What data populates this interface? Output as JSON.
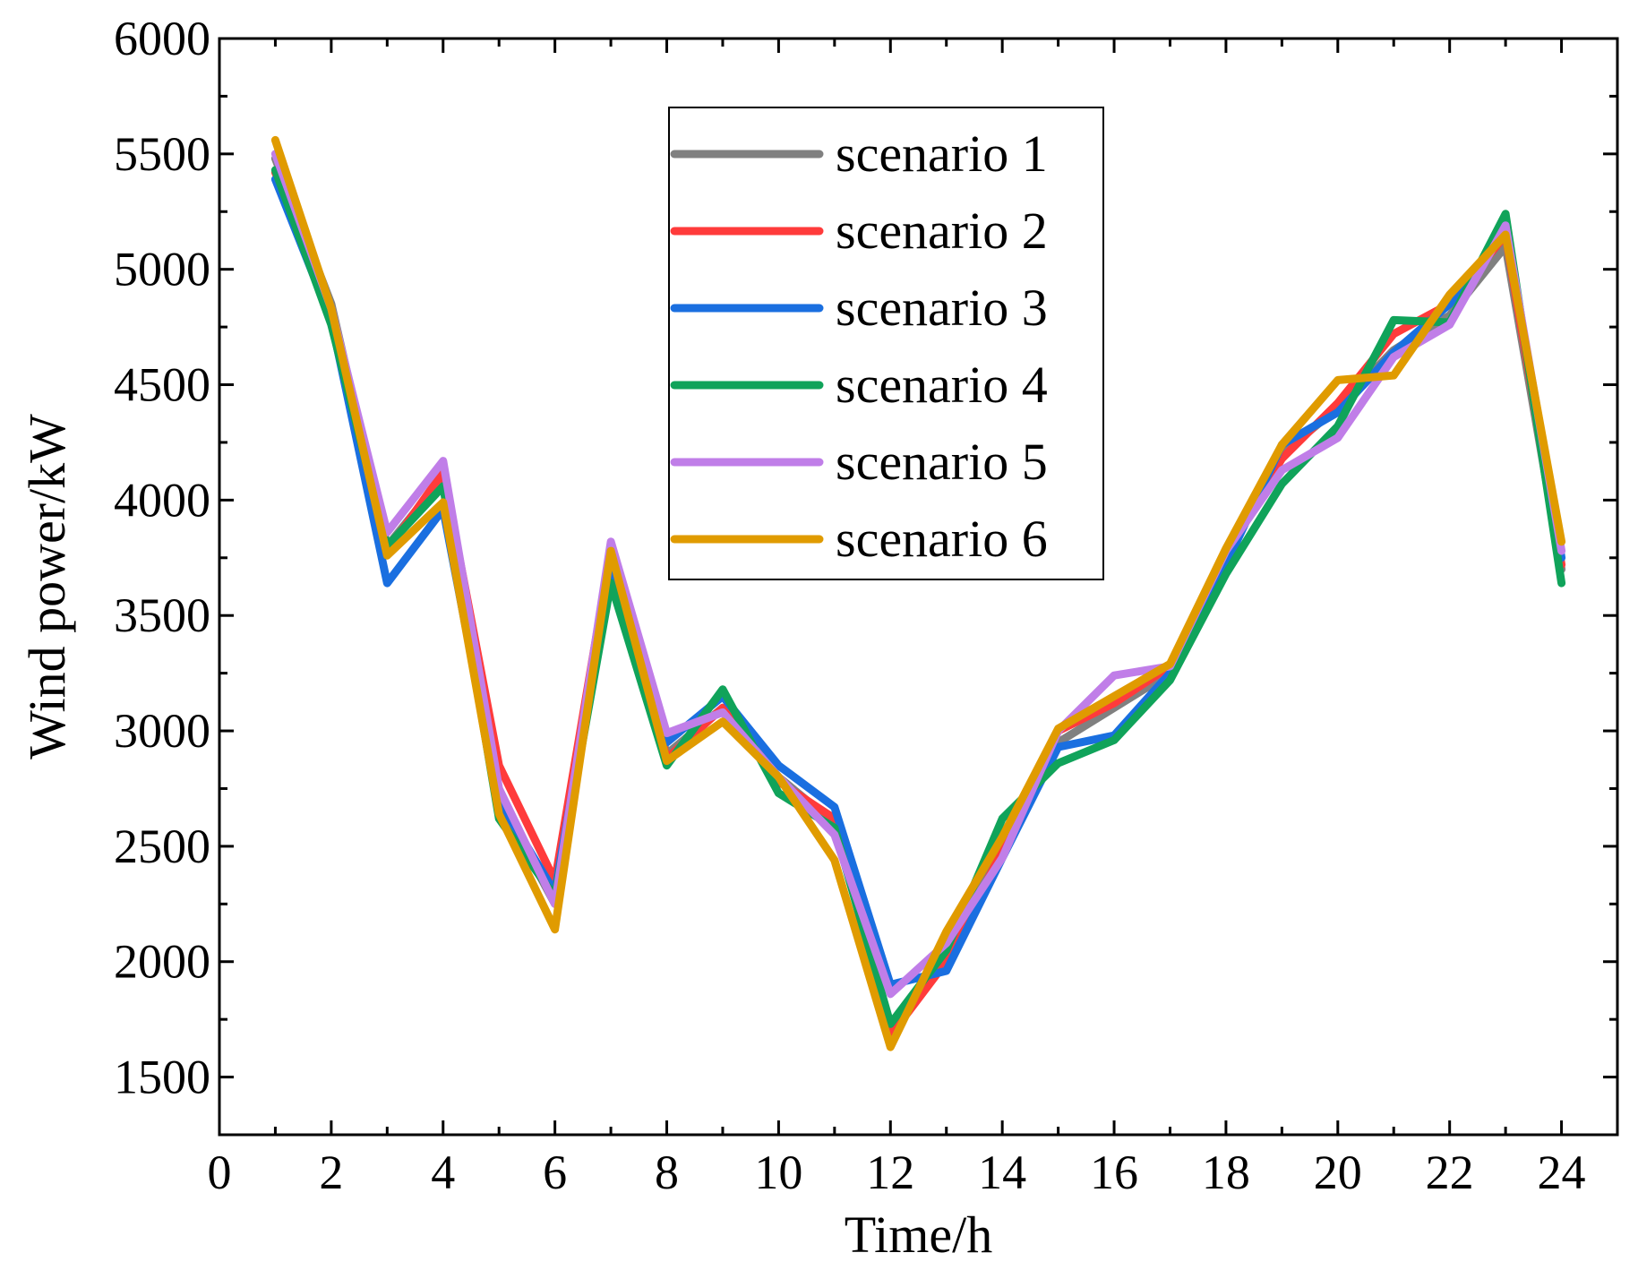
{
  "chart_data": {
    "type": "line",
    "xlabel": "Time/h",
    "ylabel": "Wind power/kW",
    "xlim": [
      0,
      25
    ],
    "ylim": [
      1250,
      6000
    ],
    "x_ticks": [
      0,
      2,
      4,
      6,
      8,
      10,
      12,
      14,
      16,
      18,
      20,
      22,
      24
    ],
    "y_ticks": [
      1500,
      2000,
      2500,
      3000,
      3500,
      4000,
      4500,
      5000,
      5500,
      6000
    ],
    "grid": false,
    "legend_position": "top-center",
    "x": [
      1,
      2,
      3,
      4,
      5,
      6,
      7,
      8,
      9,
      10,
      11,
      12,
      13,
      14,
      15,
      16,
      17,
      18,
      19,
      20,
      21,
      22,
      23,
      24
    ],
    "series": [
      {
        "name": "scenario 1",
        "color": "#808080",
        "values": [
          5480,
          4850,
          3800,
          4100,
          2700,
          2250,
          3750,
          2900,
          3100,
          2800,
          2600,
          1700,
          2050,
          2500,
          2950,
          3100,
          3250,
          3750,
          4200,
          4400,
          4650,
          4800,
          5100,
          3700
        ]
      },
      {
        "name": "scenario 2",
        "color": "#ff3b3b",
        "values": [
          5420,
          4800,
          3780,
          4120,
          2850,
          2350,
          3780,
          2880,
          3100,
          2780,
          2620,
          1680,
          2000,
          2480,
          3000,
          3120,
          3280,
          3780,
          4180,
          4420,
          4720,
          4850,
          5150,
          3720
        ]
      },
      {
        "name": "scenario 3",
        "color": "#1a6fe0",
        "values": [
          5390,
          4780,
          3640,
          3960,
          2700,
          2300,
          3700,
          2950,
          3150,
          2850,
          2670,
          1900,
          1960,
          2450,
          2930,
          2980,
          3250,
          3720,
          4240,
          4380,
          4640,
          4850,
          5180,
          3750
        ]
      },
      {
        "name": "scenario 4",
        "color": "#10a35a",
        "values": [
          5430,
          4760,
          3800,
          4060,
          2620,
          2280,
          3640,
          2850,
          3180,
          2730,
          2580,
          1730,
          2050,
          2620,
          2860,
          2960,
          3220,
          3680,
          4070,
          4320,
          4780,
          4770,
          5240,
          3640
        ]
      },
      {
        "name": "scenario 5",
        "color": "#c07ee8",
        "values": [
          5500,
          4830,
          3860,
          4170,
          2750,
          2250,
          3820,
          2990,
          3080,
          2800,
          2550,
          1860,
          2080,
          2450,
          3000,
          3240,
          3280,
          3780,
          4130,
          4270,
          4620,
          4760,
          5190,
          3780
        ]
      },
      {
        "name": "scenario 6",
        "color": "#e09b00",
        "values": [
          5560,
          4830,
          3760,
          3990,
          2640,
          2140,
          3780,
          2870,
          3040,
          2800,
          2440,
          1630,
          2130,
          2540,
          3010,
          3150,
          3290,
          3790,
          4240,
          4520,
          4540,
          4890,
          5150,
          3820
        ]
      }
    ]
  }
}
